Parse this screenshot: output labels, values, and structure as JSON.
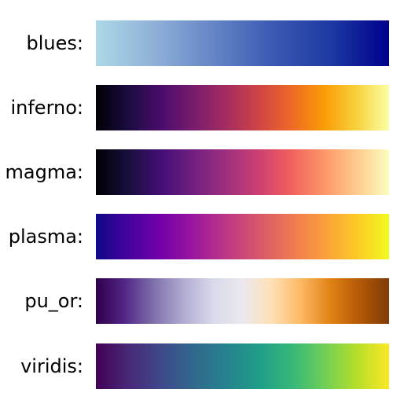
{
  "colormaps": [
    {
      "label": "blues:",
      "colors": [
        "#add8e6",
        "#8fb0d8",
        "#6585c6",
        "#3c5ab3",
        "#1d3aa3",
        "#00008b"
      ]
    },
    {
      "label": "inferno:",
      "colors": [
        "#000004",
        "#1b0c41",
        "#4a0c6b",
        "#781c6d",
        "#a52c60",
        "#cf4446",
        "#ed6925",
        "#fb9b06",
        "#f7d13d",
        "#fcffa4"
      ]
    },
    {
      "label": "magma:",
      "colors": [
        "#000004",
        "#180f3d",
        "#440f76",
        "#721f81",
        "#9e2f7f",
        "#cd4071",
        "#f1605d",
        "#fd9668",
        "#feca8d",
        "#fcfdbf"
      ]
    },
    {
      "label": "plasma:",
      "colors": [
        "#0d0887",
        "#47039f",
        "#7301a8",
        "#9c179e",
        "#bd3786",
        "#d8576b",
        "#ed7953",
        "#fa9e3b",
        "#fdc926",
        "#f0f921"
      ]
    },
    {
      "label": "pu_or:",
      "colors": [
        "#2d004b",
        "#542788",
        "#8073ac",
        "#b2abd2",
        "#d8daeb",
        "#ebe8ee",
        "#fee0b6",
        "#fdb863",
        "#e08214",
        "#b35806",
        "#7f3b08"
      ]
    },
    {
      "label": "viridis:",
      "colors": [
        "#440154",
        "#482878",
        "#3e4989",
        "#31688e",
        "#26828e",
        "#1f9e89",
        "#35b779",
        "#6ece58",
        "#b5de2b",
        "#fde725"
      ]
    }
  ]
}
